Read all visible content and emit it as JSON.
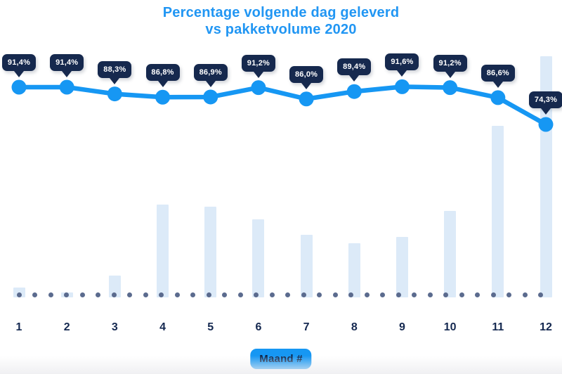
{
  "colors": {
    "accent_blue": "#1697F3",
    "title_blue": "#2196F3",
    "badge_bg": "#16294E",
    "badge_text": "#FFFFFF",
    "bar_fill": "#DCEAF8",
    "dot_color": "#5B6B8E",
    "tick_navy": "#142850",
    "background": "#FFFFFF"
  },
  "chart_data": {
    "type": "combo",
    "title": "Percentage volgende dag geleverd vs pakketvolume 2020",
    "title_line1": "Percentage volgende dag geleverd",
    "title_line2": "vs pakketvolume 2020",
    "xlabel": "Maand #",
    "categories": [
      "1",
      "2",
      "3",
      "4",
      "5",
      "6",
      "7",
      "8",
      "9",
      "10",
      "11",
      "12"
    ],
    "series": [
      {
        "name": "Percentage volgende dag geleverd",
        "type": "line",
        "unit": "%",
        "values": [
          91.4,
          91.4,
          88.3,
          86.8,
          86.9,
          91.2,
          86.0,
          89.4,
          91.6,
          91.2,
          86.6,
          74.3
        ],
        "labels": [
          "91,4%",
          "91,4%",
          "88,3%",
          "86,8%",
          "86,9%",
          "91,2%",
          "86,0%",
          "89,4%",
          "91,6%",
          "91,2%",
          "86,6%",
          "74,3%"
        ],
        "point_labels_style": "dark-tooltip-badges"
      },
      {
        "name": "Pakketvolume",
        "type": "bar",
        "unit": "relative (% of max month)",
        "values": [
          4,
          2,
          9,
          38.5,
          37.5,
          32.5,
          26,
          22.5,
          25,
          36,
          71,
          100
        ]
      }
    ],
    "baseline_style": "dotted",
    "legend_position": "none",
    "grid": false
  }
}
